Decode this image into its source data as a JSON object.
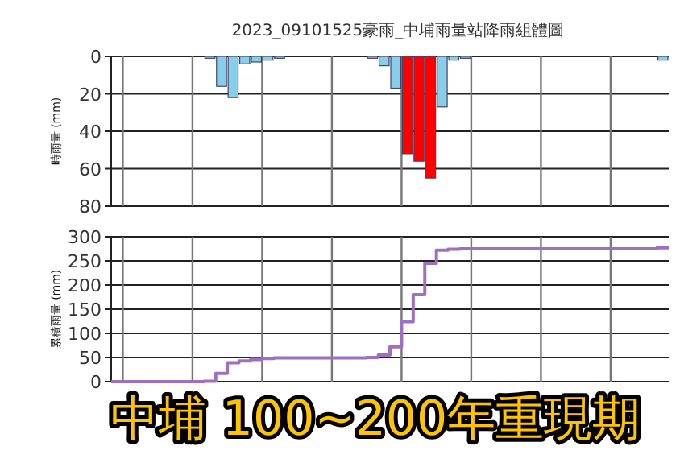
{
  "chart_data": [
    {
      "type": "bar",
      "title": "2023_09101525豪雨_中埔雨量站降雨組體圖",
      "ylabel": "時雨量 (mm)",
      "categories": [
        null,
        null,
        null,
        null,
        null,
        null,
        null,
        null,
        null,
        null,
        null,
        null,
        null,
        null,
        null,
        null,
        null,
        null,
        null,
        null,
        null,
        null,
        null,
        null,
        null,
        null,
        null,
        null,
        null,
        null,
        null,
        null,
        null,
        null,
        null,
        null,
        null,
        null,
        null,
        null,
        null,
        null,
        null,
        null,
        null,
        null,
        null,
        null
      ],
      "values": [
        null,
        null,
        null,
        null,
        null,
        null,
        null,
        null,
        1,
        16,
        22,
        4,
        3,
        2,
        1,
        null,
        null,
        null,
        null,
        null,
        null,
        null,
        1,
        5,
        17,
        52,
        56,
        65,
        27,
        2,
        1,
        null,
        null,
        null,
        null,
        null,
        null,
        null,
        null,
        null,
        null,
        null,
        null,
        null,
        null,
        null,
        null,
        2
      ],
      "colors": [
        null,
        null,
        null,
        null,
        null,
        null,
        null,
        null,
        "#87ceeb",
        "#87ceeb",
        "#87ceeb",
        "#87ceeb",
        "#87ceeb",
        "#87ceeb",
        "#87ceeb",
        null,
        null,
        null,
        null,
        null,
        null,
        null,
        "#87ceeb",
        "#87ceeb",
        "#87ceeb",
        "#ff0000",
        "#ff0000",
        "#ff0000",
        "#87ceeb",
        "#87ceeb",
        "#87ceeb",
        null,
        null,
        null,
        null,
        null,
        null,
        null,
        null,
        null,
        null,
        null,
        null,
        null,
        null,
        null,
        null,
        "#87ceeb"
      ],
      "ylim": [
        80,
        0
      ],
      "yticks": [
        0,
        20,
        40,
        60,
        80
      ],
      "grid": true
    },
    {
      "type": "step",
      "ylabel": "累積雨量 (mm)",
      "color": "#a070c0",
      "categories": [
        null,
        null,
        null,
        null,
        null,
        null,
        null,
        null,
        null,
        null,
        null,
        null,
        null,
        null,
        null,
        null,
        null,
        null,
        null,
        null,
        null,
        null,
        null,
        null,
        null,
        null,
        null,
        null,
        null,
        null,
        null,
        null,
        null,
        null,
        null,
        null,
        null,
        null,
        null,
        null,
        null,
        null,
        null,
        null,
        null,
        null,
        null,
        null
      ],
      "values": [
        0,
        0,
        0,
        0,
        0,
        0,
        0,
        0,
        1,
        17,
        39,
        43,
        46,
        48,
        49,
        49,
        49,
        49,
        49,
        49,
        49,
        49,
        50,
        55,
        72,
        124,
        180,
        245,
        272,
        274,
        275,
        275,
        275,
        275,
        275,
        275,
        275,
        275,
        275,
        275,
        275,
        275,
        275,
        275,
        275,
        275,
        275,
        277
      ],
      "ylim": [
        0,
        300
      ],
      "yticks": [
        0,
        50,
        100,
        150,
        200,
        250,
        300
      ],
      "grid": true,
      "annotations": [
        "中埔 100~200年重現期"
      ]
    }
  ]
}
